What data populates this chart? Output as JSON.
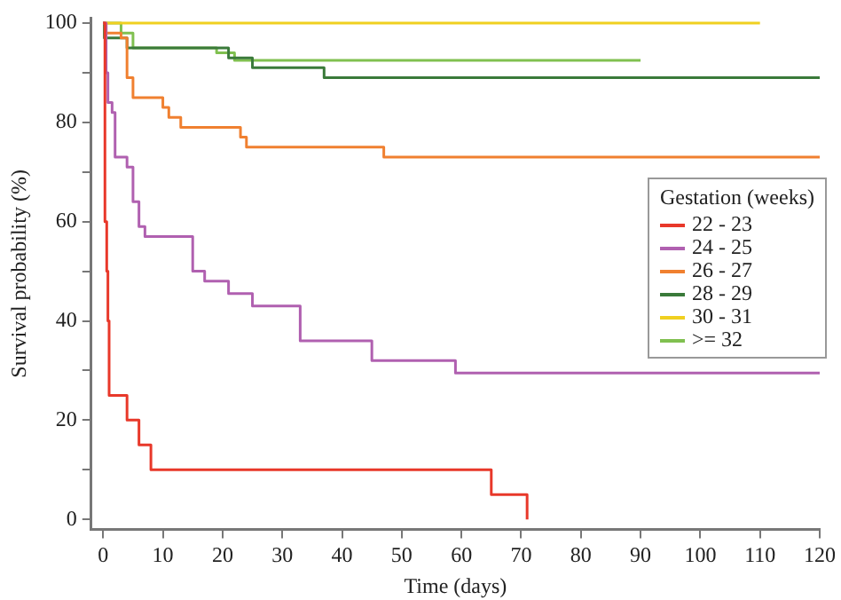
{
  "chart_data": {
    "type": "step",
    "xlabel": "Time (days)",
    "ylabel": "Survival probability (%)",
    "legend_title": "Gestation (weeks)",
    "legend": "right",
    "grid": false,
    "marker": "none",
    "line_style": "solid",
    "xlim": [
      -2,
      120
    ],
    "xticks": [
      0,
      10,
      20,
      30,
      40,
      50,
      60,
      70,
      80,
      90,
      100,
      110,
      120
    ],
    "ylim": [
      -2,
      101
    ],
    "yticks": [
      0,
      {
        "value": 10,
        "label": null
      },
      20,
      {
        "value": 30,
        "label": null
      },
      40,
      {
        "value": 50,
        "label": null
      },
      60,
      {
        "value": 70,
        "label": null
      },
      80,
      {
        "value": 90,
        "label": null
      },
      100
    ],
    "series": [
      {
        "name": "22 - 23",
        "color": "#e8382a",
        "x": [
          0,
          0.3,
          0.6,
          0.8,
          1,
          4,
          6,
          8,
          65,
          71
        ],
        "values": [
          100,
          60,
          50,
          40,
          25,
          20,
          15,
          10,
          5,
          0
        ]
      },
      {
        "name": "24 - 25",
        "color": "#b060b0",
        "x": [
          0,
          0.5,
          0.8,
          1.5,
          2,
          4,
          5,
          6,
          7,
          15,
          17,
          21,
          25,
          33,
          45,
          59,
          120
        ],
        "values": [
          100,
          90,
          84,
          82,
          73,
          71,
          64,
          59,
          57,
          50,
          48,
          45.5,
          43,
          36,
          32,
          29.5,
          29.5
        ]
      },
      {
        "name": "26 - 27",
        "color": "#f08030",
        "x": [
          0,
          0.5,
          3,
          4,
          5,
          10,
          11,
          13,
          23,
          24,
          47,
          120
        ],
        "values": [
          100,
          98,
          97,
          89,
          85,
          83,
          81,
          79,
          77,
          75,
          73,
          73
        ]
      },
      {
        "name": "28 - 29",
        "color": "#3a7a3a",
        "x": [
          0,
          0.2,
          4,
          21,
          25,
          37,
          120
        ],
        "values": [
          100,
          97,
          95,
          93,
          91,
          89,
          89
        ]
      },
      {
        "name": "30 - 31",
        "color": "#f0d020",
        "x": [
          0,
          110
        ],
        "values": [
          100,
          100
        ]
      },
      {
        "name": ">= 32",
        "color": "#80c050",
        "x": [
          0,
          3,
          5,
          19,
          22,
          90
        ],
        "values": [
          100,
          98,
          95,
          94,
          92.5,
          92.5
        ]
      }
    ]
  }
}
